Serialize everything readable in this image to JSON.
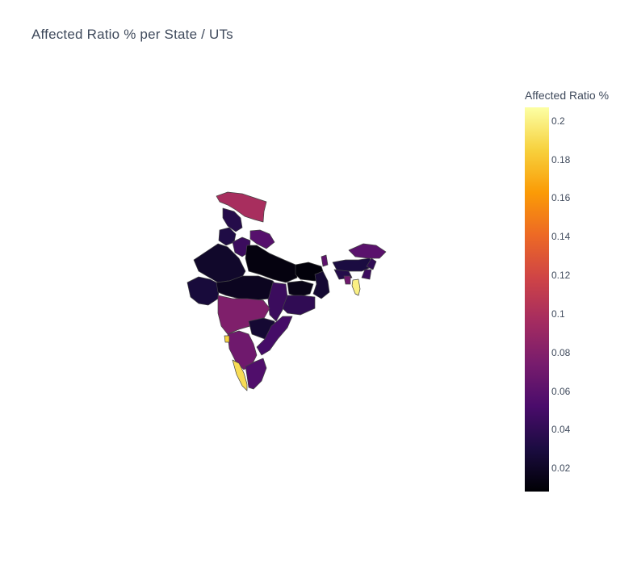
{
  "title": "Affected Ratio % per State / UTs",
  "colorbar": {
    "title": "Affected Ratio %",
    "min": 0.008,
    "max": 0.207,
    "ticks": [
      "0.02",
      "0.04",
      "0.06",
      "0.08",
      "0.1",
      "0.12",
      "0.14",
      "0.16",
      "0.18",
      "0.2"
    ],
    "colorscale": [
      "#000004",
      "#1b0c41",
      "#4a0c6b",
      "#781c6d",
      "#a52c60",
      "#cf4446",
      "#ed6925",
      "#fb9b06",
      "#f7d13d",
      "#fcffa4"
    ]
  },
  "chart_data": {
    "type": "choropleth",
    "values_by_region": {
      "ladakh-jk": 0.098,
      "himachal": 0.035,
      "punjab": 0.032,
      "uttarakhand": 0.058,
      "haryana-delhi": 0.045,
      "rajasthan": 0.022,
      "uttar-pradesh": 0.012,
      "bihar": 0.01,
      "gujarat": 0.028,
      "madhya-pradesh": 0.018,
      "jharkhand": 0.015,
      "west-bengal": 0.025,
      "chhattisgarh": 0.045,
      "odisha": 0.04,
      "maharashtra": 0.078,
      "telangana": 0.025,
      "andhra-pradesh": 0.05,
      "karnataka": 0.07,
      "goa": 0.185,
      "kerala": 0.19,
      "tamil-nadu": 0.055,
      "sikkim": 0.062,
      "assam": 0.03,
      "arunachal": 0.06,
      "meghalaya": 0.035,
      "nagaland": 0.04,
      "manipur": 0.045,
      "mizoram": 0.2,
      "tripura": 0.07
    }
  }
}
